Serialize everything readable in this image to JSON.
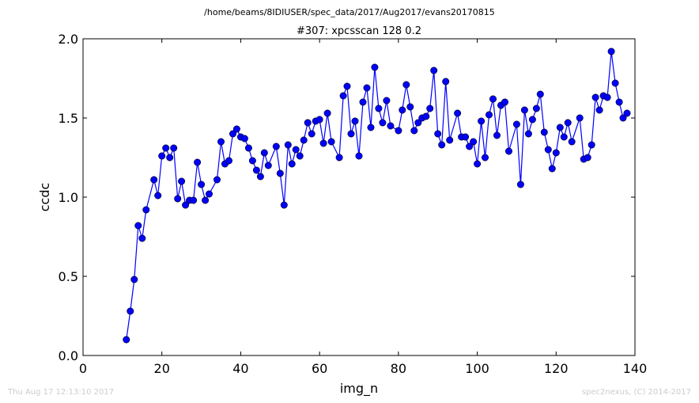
{
  "page": {
    "title": "/home/beams/8IDIUSER/spec_data/2017/Aug2017/evans20170815",
    "footer_left": "Thu Aug 17 12:13:10 2017",
    "footer_right": "spec2nexus, (C) 2014-2017"
  },
  "chart_data": {
    "type": "line",
    "title": "#307: xpcsscan 128 0.2",
    "xlabel": "img_n",
    "ylabel": "ccdc",
    "xlim": [
      0,
      140
    ],
    "ylim": [
      0.0,
      2.0
    ],
    "xticks": [
      "0",
      "20",
      "40",
      "60",
      "80",
      "100",
      "120",
      "140"
    ],
    "yticks": [
      "0.0",
      "0.5",
      "1.0",
      "1.5",
      "2.0"
    ],
    "grid": false,
    "marker": "circle",
    "color": "#0000ff",
    "series": [
      {
        "x": [
          11,
          12,
          13,
          14,
          15,
          16,
          18,
          19,
          20,
          21,
          22,
          23,
          24,
          25,
          26,
          27,
          28,
          29,
          30,
          31,
          32,
          34,
          35,
          36,
          37,
          38,
          39,
          40,
          41,
          42,
          43,
          44,
          45,
          46,
          47,
          49,
          50,
          51,
          52,
          53,
          54,
          55,
          56,
          57,
          58,
          59,
          60,
          61,
          62,
          63,
          65,
          66,
          67,
          68,
          69,
          70,
          71,
          72,
          73,
          74,
          75,
          76,
          77,
          78,
          80,
          81,
          82,
          83,
          84,
          85,
          86,
          87,
          88,
          89,
          90,
          91,
          92,
          93,
          95,
          96,
          97,
          98,
          99,
          100,
          101,
          102,
          103,
          104,
          105,
          106,
          107,
          108,
          110,
          111,
          112,
          113,
          114,
          115,
          116,
          117,
          118,
          119,
          120,
          121,
          122,
          123,
          124,
          126,
          127,
          128,
          129,
          130,
          131,
          132,
          133,
          134,
          135,
          136,
          137,
          138
        ],
        "y": [
          0.1,
          0.28,
          0.48,
          0.82,
          0.74,
          0.92,
          1.11,
          1.01,
          1.26,
          1.31,
          1.25,
          1.31,
          0.99,
          1.1,
          0.95,
          0.98,
          0.98,
          1.22,
          1.08,
          0.98,
          1.02,
          1.11,
          1.35,
          1.21,
          1.23,
          1.4,
          1.43,
          1.38,
          1.37,
          1.31,
          1.23,
          1.17,
          1.13,
          1.28,
          1.2,
          1.32,
          1.15,
          0.95,
          1.33,
          1.21,
          1.3,
          1.26,
          1.36,
          1.47,
          1.4,
          1.48,
          1.49,
          1.34,
          1.53,
          1.35,
          1.25,
          1.64,
          1.7,
          1.4,
          1.48,
          1.26,
          1.6,
          1.69,
          1.44,
          1.82,
          1.56,
          1.47,
          1.61,
          1.45,
          1.42,
          1.55,
          1.71,
          1.57,
          1.42,
          1.47,
          1.5,
          1.51,
          1.56,
          1.8,
          1.4,
          1.33,
          1.73,
          1.36,
          1.53,
          1.38,
          1.38,
          1.32,
          1.35,
          1.21,
          1.48,
          1.25,
          1.52,
          1.62,
          1.39,
          1.58,
          1.6,
          1.29,
          1.46,
          1.08,
          1.55,
          1.4,
          1.49,
          1.56,
          1.65,
          1.41,
          1.3,
          1.18,
          1.28,
          1.44,
          1.38,
          1.47,
          1.35,
          1.5,
          1.24,
          1.25,
          1.33,
          1.63,
          1.55,
          1.64,
          1.63,
          1.92,
          1.72,
          1.6,
          1.5,
          1.53
        ]
      }
    ]
  }
}
